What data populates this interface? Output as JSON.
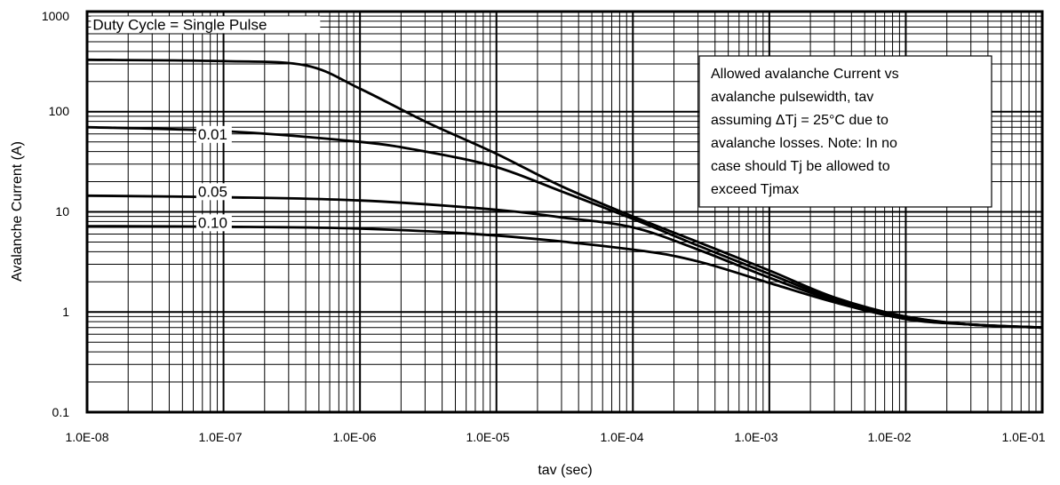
{
  "chart_data": {
    "type": "line",
    "xlabel": "tav (sec)",
    "ylabel": "Avalanche Current (A)",
    "x_scale": "log",
    "y_scale": "log",
    "xlim": [
      1e-08,
      0.1
    ],
    "ylim": [
      0.1,
      1000
    ],
    "x_tick_labels": [
      "1.0E-08",
      "1.0E-07",
      "1.0E-06",
      "1.0E-05",
      "1.0E-04",
      "1.0E-03",
      "1.0E-02",
      "1.0E-01"
    ],
    "y_tick_labels": [
      "0.1",
      "1",
      "10",
      "100",
      "1000"
    ],
    "grid": true,
    "annotation": {
      "lines": [
        "Allowed avalanche Current vs",
        "avalanche pulsewidth, tav",
        "assuming ΔTj = 25°C due to",
        "avalanche losses. Note: In no",
        "case should Tj be allowed to",
        "exceed Tjmax"
      ]
    },
    "series": [
      {
        "name": "Duty Cycle = Single Pulse",
        "points": [
          [
            1e-08,
            330
          ],
          [
            1e-07,
            320
          ],
          [
            4e-07,
            290
          ],
          [
            1e-06,
            170
          ],
          [
            3e-06,
            80
          ],
          [
            1e-05,
            38
          ],
          [
            3e-05,
            18
          ],
          [
            0.0001,
            9
          ],
          [
            0.0003,
            5
          ],
          [
            0.001,
            2.6
          ],
          [
            0.003,
            1.4
          ],
          [
            0.01,
            0.9
          ],
          [
            0.03,
            0.75
          ],
          [
            0.1,
            0.7
          ]
        ]
      },
      {
        "name": "0.01",
        "points": [
          [
            1e-08,
            70
          ],
          [
            1e-07,
            64
          ],
          [
            1e-06,
            50
          ],
          [
            3e-06,
            40
          ],
          [
            1e-05,
            28
          ],
          [
            3e-05,
            16
          ],
          [
            0.0001,
            8.5
          ],
          [
            0.0003,
            4.6
          ],
          [
            0.001,
            2.4
          ],
          [
            0.003,
            1.35
          ],
          [
            0.01,
            0.9
          ],
          [
            0.03,
            0.75
          ],
          [
            0.1,
            0.7
          ]
        ]
      },
      {
        "name": "0.05",
        "points": [
          [
            1e-08,
            14.5
          ],
          [
            1e-07,
            14
          ],
          [
            1e-06,
            13
          ],
          [
            1e-05,
            10.5
          ],
          [
            3e-05,
            8.8
          ],
          [
            0.0001,
            7
          ],
          [
            0.0003,
            4.2
          ],
          [
            0.001,
            2.2
          ],
          [
            0.003,
            1.3
          ],
          [
            0.01,
            0.88
          ],
          [
            0.03,
            0.75
          ],
          [
            0.1,
            0.7
          ]
        ]
      },
      {
        "name": "0.10",
        "points": [
          [
            1e-08,
            7.2
          ],
          [
            1e-07,
            7.1
          ],
          [
            1e-06,
            6.8
          ],
          [
            1e-05,
            5.8
          ],
          [
            0.0001,
            4.2
          ],
          [
            0.0003,
            3.2
          ],
          [
            0.001,
            1.95
          ],
          [
            0.003,
            1.25
          ],
          [
            0.01,
            0.85
          ],
          [
            0.03,
            0.75
          ],
          [
            0.1,
            0.7
          ]
        ]
      }
    ]
  }
}
